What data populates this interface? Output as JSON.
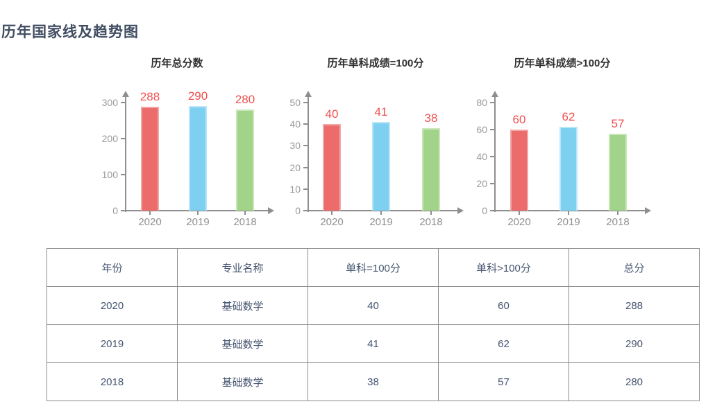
{
  "page": {
    "title": "历年国家线及趋势图"
  },
  "style": {
    "page_title_color": "#414d62",
    "chart_title_color": "#2f2f2f",
    "axis_color": "#8e8e8e",
    "tick_label_color": "#9a9a9a",
    "category_label_color": "#8f8f8f",
    "value_label_color": "#f05050",
    "bar_colors": [
      "#ec6b6b",
      "#7ed0f0",
      "#a1d389"
    ],
    "bar_border_colors": [
      "#f3a8a8",
      "#b9e6f8",
      "#c9e7ba"
    ],
    "table_text_color": "#465570",
    "table_border_color": "#8b8b8b"
  },
  "chart_data": [
    {
      "type": "bar",
      "name": "total-scores-chart",
      "title": "历年总分数",
      "categories": [
        "2020",
        "2019",
        "2018"
      ],
      "values": [
        288,
        290,
        280
      ],
      "value_labels": [
        "288",
        "290",
        "280"
      ],
      "y_ticks": [
        0,
        100,
        200,
        300
      ],
      "ylim": [
        0,
        300
      ],
      "xlabel": "",
      "ylabel": "",
      "grid": false,
      "legend": "none"
    },
    {
      "type": "bar",
      "name": "single-subject-eq-100-chart",
      "title": "历年单科成绩=100分",
      "categories": [
        "2020",
        "2019",
        "2018"
      ],
      "values": [
        40,
        41,
        38
      ],
      "value_labels": [
        "40",
        "41",
        "38"
      ],
      "y_ticks": [
        0,
        10,
        20,
        30,
        40,
        50
      ],
      "ylim": [
        0,
        50
      ],
      "xlabel": "",
      "ylabel": "",
      "grid": false,
      "legend": "none"
    },
    {
      "type": "bar",
      "name": "single-subject-gt-100-chart",
      "title": "历年单科成绩>100分",
      "categories": [
        "2020",
        "2019",
        "2018"
      ],
      "values": [
        60,
        62,
        57
      ],
      "value_labels": [
        "60",
        "62",
        "57"
      ],
      "y_ticks": [
        0,
        20,
        40,
        60,
        80
      ],
      "ylim": [
        0,
        80
      ],
      "xlabel": "",
      "ylabel": "",
      "grid": false,
      "legend": "none"
    },
    {
      "type": "table",
      "name": "national-line-table",
      "headers": [
        "年份",
        "专业名称",
        "单科=100分",
        "单科>100分",
        "总分"
      ],
      "rows": [
        [
          "2020",
          "基础数学",
          "40",
          "60",
          "288"
        ],
        [
          "2019",
          "基础数学",
          "41",
          "62",
          "290"
        ],
        [
          "2018",
          "基础数学",
          "38",
          "57",
          "280"
        ]
      ]
    }
  ]
}
